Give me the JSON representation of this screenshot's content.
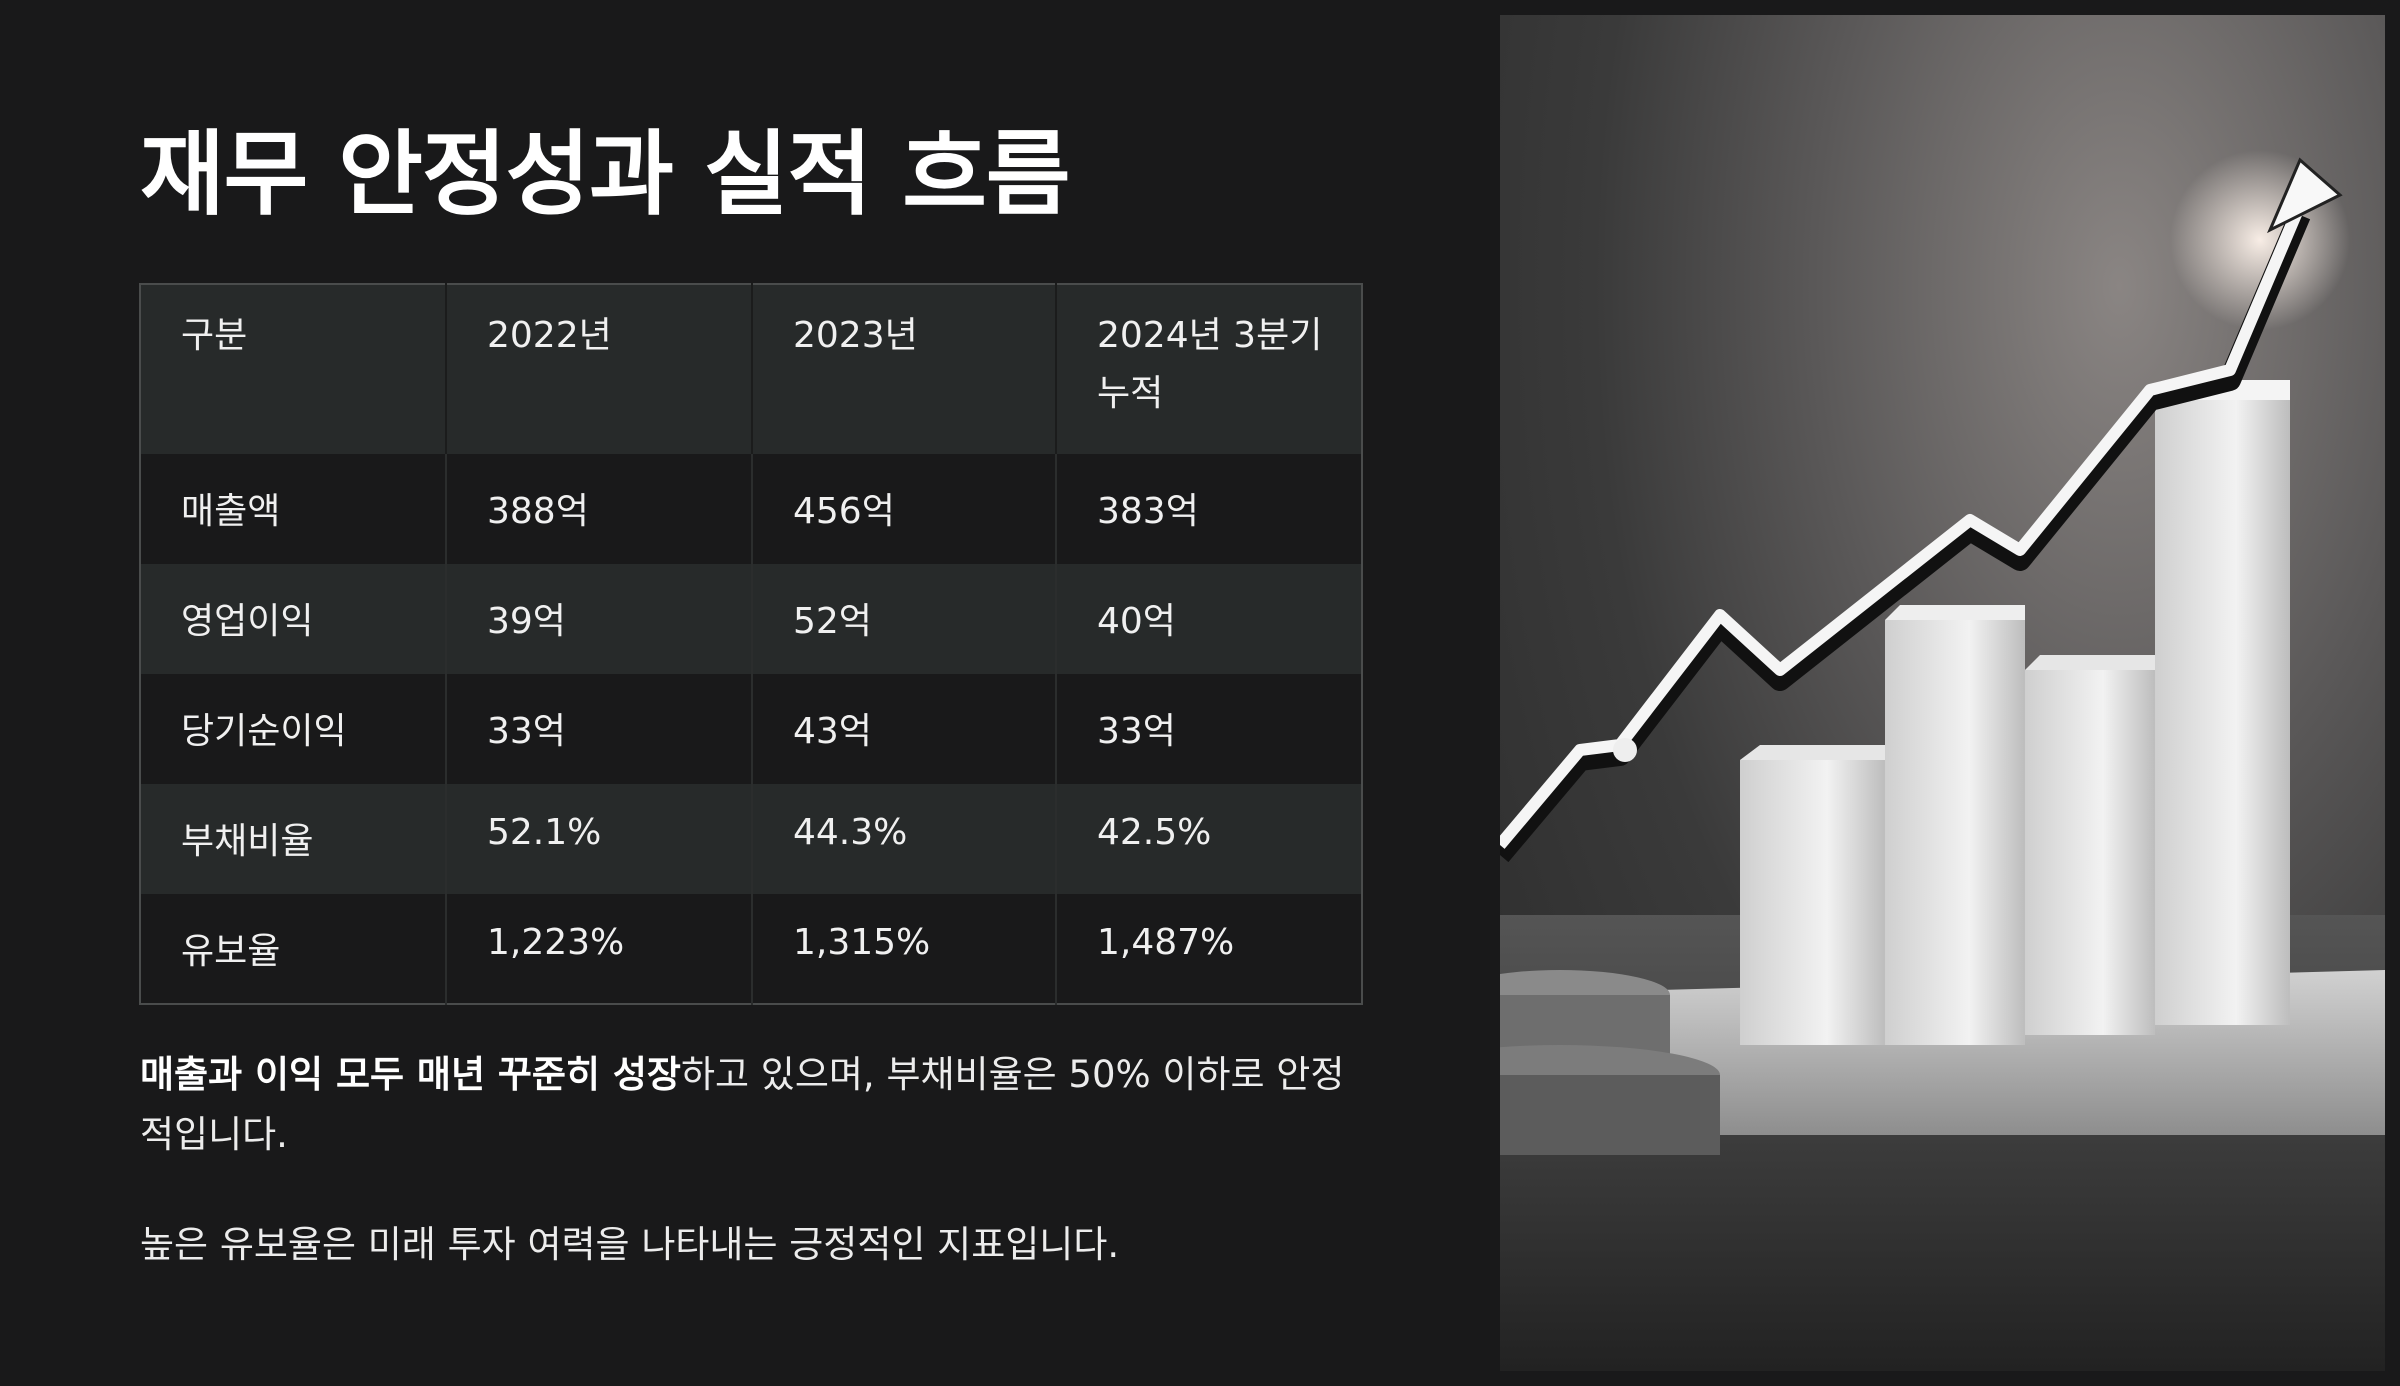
{
  "title": "재무 안정성과 실적 흐름",
  "table": {
    "headers": [
      "구분",
      "2022년",
      "2023년",
      "2024년 3분기 누적"
    ],
    "rows": [
      [
        "매출액",
        "388억",
        "456억",
        "383억"
      ],
      [
        "영업이익",
        "39억",
        "52억",
        "40억"
      ],
      [
        "당기순이익",
        "33억",
        "43억",
        "33억"
      ],
      [
        "부채비율",
        "52.1%",
        "44.3%",
        "42.5%"
      ],
      [
        "유보율",
        "1,223%",
        "1,315%",
        "1,487%"
      ]
    ]
  },
  "description": {
    "bold": "매출과 이익 모두 매년 꾸준히 성장",
    "rest": "하고 있으며, 부채비율은 50% 이하로 안정적입니다.",
    "second": "높은 유보율은 미래 투자 여력을 나타내는 긍정적인 지표입니다."
  },
  "image": {
    "subject": "growth-chart-photo"
  }
}
